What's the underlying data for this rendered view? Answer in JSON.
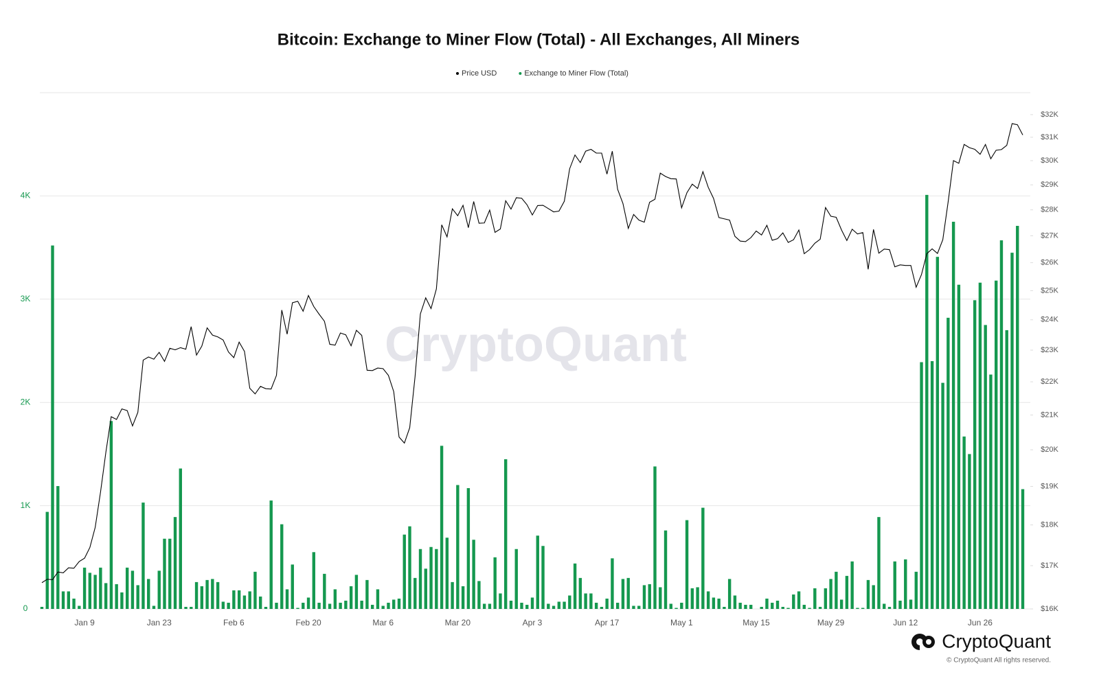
{
  "chart_data": {
    "type": "combo",
    "title": "Bitcoin: Exchange to Miner Flow (Total) - All Exchanges, All Miners",
    "watermark": "CryptoQuant",
    "logo": "CryptoQuant",
    "copyright": "© CryptoQuant All rights reserved.",
    "categories": [
      null,
      null,
      null,
      null,
      null,
      null,
      null,
      null,
      "Jan 9",
      null,
      null,
      null,
      null,
      null,
      null,
      null,
      null,
      null,
      null,
      null,
      null,
      null,
      "Jan 23",
      null,
      null,
      null,
      null,
      null,
      null,
      null,
      null,
      null,
      null,
      null,
      null,
      null,
      "Feb 6",
      null,
      null,
      null,
      null,
      null,
      null,
      null,
      null,
      null,
      null,
      null,
      null,
      null,
      "Feb 20",
      null,
      null,
      null,
      null,
      null,
      null,
      null,
      null,
      null,
      null,
      null,
      null,
      null,
      "Mar 6",
      null,
      null,
      null,
      null,
      null,
      null,
      null,
      null,
      null,
      null,
      null,
      null,
      null,
      "Mar 20",
      null,
      null,
      null,
      null,
      null,
      null,
      null,
      null,
      null,
      null,
      null,
      null,
      null,
      "Apr 3",
      null,
      null,
      null,
      null,
      null,
      null,
      null,
      null,
      null,
      null,
      null,
      null,
      null,
      "Apr 17",
      null,
      null,
      null,
      null,
      null,
      null,
      null,
      null,
      null,
      null,
      null,
      null,
      null,
      "May 1",
      null,
      null,
      null,
      null,
      null,
      null,
      null,
      null,
      null,
      null,
      null,
      null,
      null,
      "May 15",
      null,
      null,
      null,
      null,
      null,
      null,
      null,
      null,
      null,
      null,
      null,
      null,
      null,
      "May 29",
      null,
      null,
      null,
      null,
      null,
      null,
      null,
      null,
      null,
      null,
      null,
      null,
      null,
      "Jun 12",
      null,
      null,
      null,
      null,
      null,
      null,
      null,
      null,
      null,
      null,
      null,
      null,
      null,
      "Jun 26",
      null,
      null,
      null,
      null,
      null,
      null,
      null,
      null
    ],
    "series": [
      {
        "name": "Price USD",
        "type": "line",
        "axis": "y2",
        "color": "#000000",
        "values": [
          16600,
          16680,
          16670,
          16850,
          16830,
          16950,
          16940,
          17100,
          17180,
          17440,
          17940,
          18850,
          19930,
          20950,
          20870,
          21180,
          21130,
          20680,
          21080,
          22680,
          22780,
          22710,
          22930,
          22640,
          23060,
          23010,
          23080,
          23030,
          23770,
          22840,
          23130,
          23730,
          23490,
          23430,
          23330,
          22940,
          22760,
          23260,
          22960,
          21800,
          21630,
          21860,
          21790,
          21780,
          22200,
          24330,
          23520,
          24580,
          24630,
          24290,
          24830,
          24450,
          24190,
          23950,
          23190,
          23160,
          23560,
          23500,
          23140,
          23650,
          23480,
          22360,
          22350,
          22430,
          22410,
          22200,
          21700,
          20360,
          20190,
          20630,
          22160,
          24200,
          24750,
          24380,
          25060,
          27420,
          26960,
          28040,
          27770,
          28180,
          27310,
          28330,
          27480,
          27490,
          27990,
          27130,
          27260,
          28360,
          28030,
          28480,
          28460,
          28200,
          27800,
          28170,
          28180,
          28050,
          27920,
          27950,
          28340,
          29660,
          30240,
          29920,
          30400,
          30480,
          30320,
          30320,
          29440,
          30400,
          28820,
          28250,
          27280,
          27820,
          27600,
          27520,
          28300,
          28420,
          29480,
          29340,
          29250,
          29240,
          28080,
          28680,
          29030,
          28850,
          29540,
          28900,
          28450,
          27700,
          27650,
          27600,
          26980,
          26800,
          26780,
          26930,
          27180,
          27030,
          27400,
          26830,
          26890,
          27110,
          26750,
          26850,
          27220,
          26330,
          26480,
          26720,
          26870,
          28090,
          27750,
          27710,
          27220,
          26820,
          27250,
          27070,
          27120,
          25760,
          27240,
          26350,
          26500,
          26480,
          25850,
          25920,
          25900,
          25900,
          25120,
          25570,
          26330,
          26510,
          26340,
          26850,
          28310,
          30000,
          29890,
          30690,
          30550,
          30480,
          30270,
          30690,
          30080,
          30440,
          30470,
          30650,
          31600,
          31550,
          31100
        ]
      },
      {
        "name": "Exchange to Miner Flow (Total)",
        "type": "bar",
        "axis": "y",
        "color": "#15984f",
        "values": [
          20,
          940,
          3520,
          1190,
          170,
          170,
          100,
          30,
          400,
          350,
          330,
          400,
          250,
          1820,
          240,
          160,
          400,
          370,
          230,
          1030,
          290,
          30,
          370,
          680,
          680,
          890,
          1360,
          20,
          20,
          260,
          220,
          280,
          290,
          260,
          70,
          60,
          180,
          180,
          130,
          170,
          360,
          120,
          20,
          1050,
          60,
          820,
          190,
          430,
          10,
          60,
          110,
          550,
          60,
          340,
          50,
          190,
          60,
          80,
          220,
          330,
          80,
          280,
          40,
          190,
          30,
          60,
          90,
          100,
          720,
          800,
          300,
          580,
          390,
          600,
          580,
          1580,
          690,
          260,
          1200,
          220,
          1170,
          670,
          270,
          50,
          50,
          500,
          150,
          1450,
          80,
          580,
          60,
          40,
          110,
          710,
          610,
          50,
          30,
          70,
          70,
          130,
          440,
          300,
          150,
          150,
          60,
          20,
          100,
          490,
          60,
          290,
          300,
          30,
          30,
          230,
          240,
          1380,
          210,
          760,
          50,
          10,
          60,
          860,
          200,
          210,
          980,
          170,
          110,
          100,
          20,
          290,
          130,
          60,
          40,
          40,
          0,
          20,
          100,
          60,
          80,
          20,
          10,
          140,
          170,
          40,
          10,
          200,
          20,
          200,
          290,
          360,
          90,
          320,
          460,
          10,
          10,
          280,
          230,
          890,
          50,
          20,
          460,
          80,
          480,
          90,
          360,
          2390,
          4010,
          2400,
          3410,
          2190,
          2820,
          3750,
          3140,
          1670,
          1500,
          2990,
          3160,
          2750,
          2270,
          3180,
          3570,
          2700,
          3450,
          3710,
          1160
        ]
      }
    ],
    "ylim": [
      0,
      5000
    ],
    "yticks": [
      0,
      {
        "value": 1000,
        "label": "1K"
      },
      {
        "value": 2000,
        "label": "2K"
      },
      {
        "value": 3000,
        "label": "3K"
      },
      {
        "value": 4000,
        "label": "4K"
      }
    ],
    "y2lim": [
      16000,
      33000
    ],
    "y2log": true,
    "y2ticks": [
      {
        "value": 16000,
        "label": "$16K"
      },
      {
        "value": 17000,
        "label": "$17K"
      },
      {
        "value": 18000,
        "label": "$18K"
      },
      {
        "value": 19000,
        "label": "$19K"
      },
      {
        "value": 20000,
        "label": "$20K"
      },
      {
        "value": 21000,
        "label": "$21K"
      },
      {
        "value": 22000,
        "label": "$22K"
      },
      {
        "value": 23000,
        "label": "$23K"
      },
      {
        "value": 24000,
        "label": "$24K"
      },
      {
        "value": 25000,
        "label": "$25K"
      },
      {
        "value": 26000,
        "label": "$26K"
      },
      {
        "value": 27000,
        "label": "$27K"
      },
      {
        "value": 28000,
        "label": "$28K"
      },
      {
        "value": 29000,
        "label": "$29K"
      },
      {
        "value": 30000,
        "label": "$30K"
      },
      {
        "value": 31000,
        "label": "$31K"
      },
      {
        "value": 32000,
        "label": "$32K"
      }
    ],
    "grid": true,
    "ytick_color": "#15984f"
  }
}
